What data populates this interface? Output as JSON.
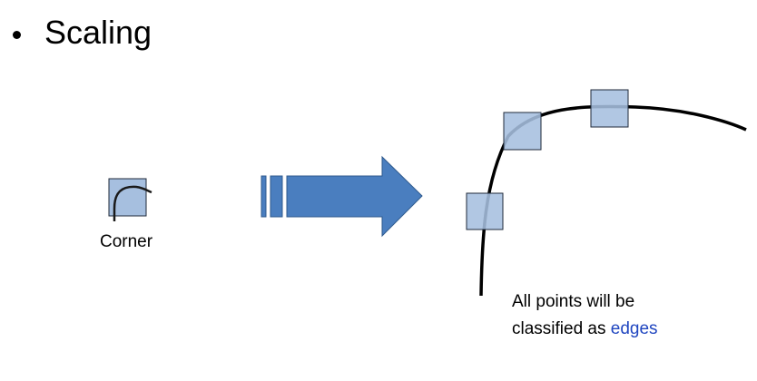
{
  "slide": {
    "bullet_title": "Scaling",
    "corner_label": "Corner",
    "caption": {
      "line1": "All points will be",
      "line2_prefix": "classified as",
      "line2_highlight": "edges"
    }
  },
  "colors": {
    "box_fill": "#a6bfdf",
    "box_stroke": "#1f2a3a",
    "arrow_fill": "#4a7ebf",
    "arrow_stroke": "#2f5a8e",
    "curve": "#000000",
    "highlight_text": "#2046c0"
  }
}
